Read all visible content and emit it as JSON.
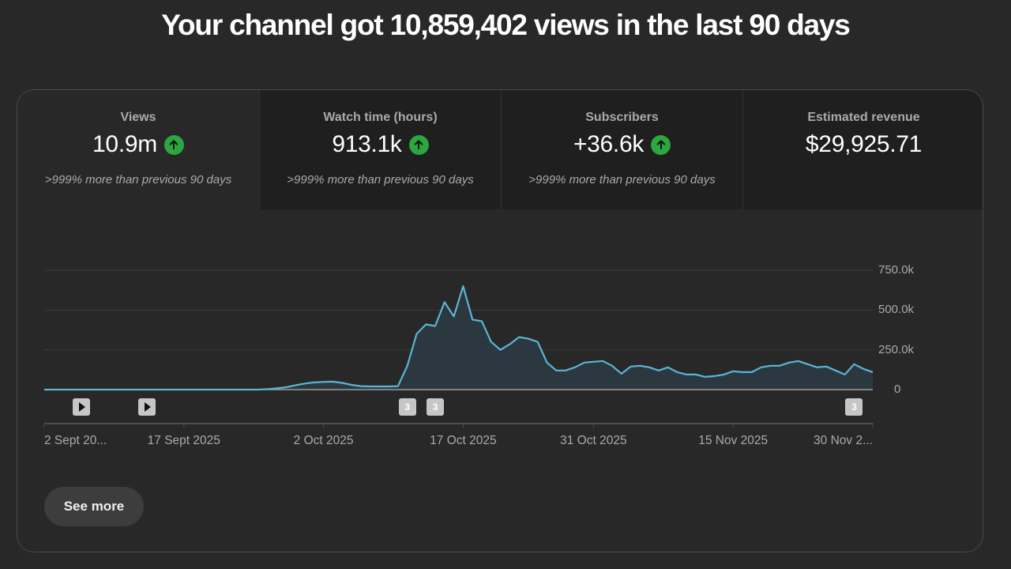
{
  "headline": "Your channel got 10,859,402 views in the last 90 days",
  "tabs": [
    {
      "label": "Views",
      "value": "10.9m",
      "trend": "up",
      "compare": ">999% more than previous 90 days",
      "selected": true
    },
    {
      "label": "Watch time (hours)",
      "value": "913.1k",
      "trend": "up",
      "compare": ">999% more than previous 90 days",
      "selected": false
    },
    {
      "label": "Subscribers",
      "value": "+36.6k",
      "trend": "up",
      "compare": ">999% more than previous 90 days",
      "selected": false
    },
    {
      "label": "Estimated revenue",
      "value": "$29,925.71",
      "trend": "",
      "compare": "",
      "selected": false
    }
  ],
  "colors": {
    "line": "#5bb5d5",
    "fill": "#2c3a42",
    "up_badge": "#2ba640",
    "grid": "#3a3a3a",
    "baseline": "#9a9a9a"
  },
  "markers": [
    {
      "type": "play",
      "label": "",
      "day": 4
    },
    {
      "type": "play",
      "label": "",
      "day": 11
    },
    {
      "type": "count",
      "label": "3",
      "day": 39
    },
    {
      "type": "count",
      "label": "3",
      "day": 42
    },
    {
      "type": "count",
      "label": "3",
      "day": 87
    }
  ],
  "see_more_label": "See more",
  "chart_data": {
    "type": "area",
    "title": "Views",
    "xlabel": "",
    "ylabel": "",
    "ylim": [
      0,
      750000
    ],
    "y_ticks": [
      "750.0k",
      "500.0k",
      "250.0k",
      "0"
    ],
    "y_tick_values": [
      750000,
      500000,
      250000,
      0
    ],
    "x_tick_labels": [
      "2 Sept 20...",
      "17 Sept 2025",
      "2 Oct 2025",
      "17 Oct 2025",
      "31 Oct 2025",
      "15 Nov 2025",
      "30 Nov 2..."
    ],
    "x_tick_days": [
      0,
      15,
      30,
      45,
      59,
      74,
      89
    ],
    "grid": true,
    "legend": null,
    "series": [
      {
        "name": "Views",
        "values": [
          0,
          0,
          0,
          0,
          0,
          0,
          0,
          0,
          0,
          0,
          0,
          0,
          0,
          0,
          0,
          0,
          0,
          0,
          0,
          0,
          0,
          0,
          0,
          0,
          3000,
          8000,
          15000,
          28000,
          38000,
          45000,
          48000,
          50000,
          42000,
          30000,
          22000,
          20000,
          20000,
          20000,
          22000,
          150000,
          350000,
          410000,
          400000,
          550000,
          460000,
          650000,
          440000,
          430000,
          300000,
          250000,
          285000,
          330000,
          320000,
          300000,
          170000,
          120000,
          120000,
          140000,
          170000,
          175000,
          180000,
          150000,
          100000,
          145000,
          150000,
          140000,
          120000,
          140000,
          110000,
          95000,
          95000,
          80000,
          85000,
          95000,
          115000,
          110000,
          110000,
          140000,
          150000,
          150000,
          170000,
          180000,
          160000,
          140000,
          145000,
          120000,
          95000,
          160000,
          130000,
          110000
        ]
      }
    ]
  }
}
